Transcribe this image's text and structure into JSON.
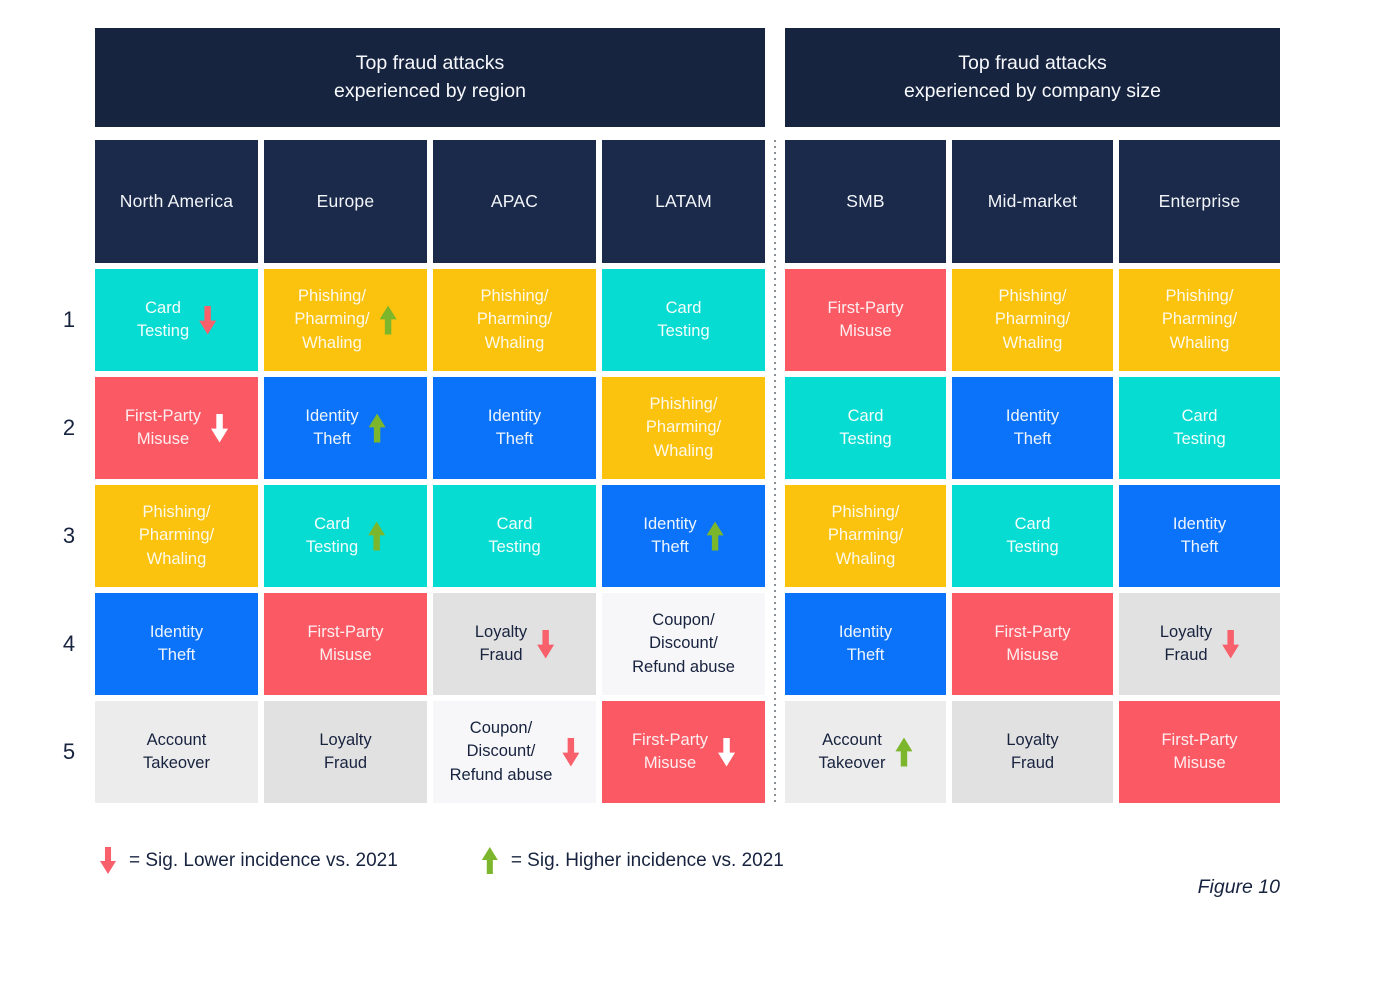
{
  "chart_data": {
    "type": "table",
    "ranks": [
      "1",
      "2",
      "3",
      "4",
      "5"
    ],
    "tables": [
      {
        "title": "Top fraud attacks\nexperienced by region",
        "columns": [
          {
            "name": "North America",
            "cells": [
              {
                "label": "Card\nTesting",
                "color": "teal",
                "arrow": "down-red",
                "trend": "sig. lower vs. 2021"
              },
              {
                "label": "First-Party\nMisuse",
                "color": "red",
                "arrow": "down-white",
                "trend": "sig. lower vs. 2021"
              },
              {
                "label": "Phishing/\nPharming/\nWhaling",
                "color": "yellow"
              },
              {
                "label": "Identity\nTheft",
                "color": "blue"
              },
              {
                "label": "Account\nTakeover",
                "color": "palegray"
              }
            ]
          },
          {
            "name": "Europe",
            "cells": [
              {
                "label": "Phishing/\nPharming/\nWhaling",
                "color": "yellow",
                "arrow": "up-green",
                "trend": "sig. higher vs. 2021"
              },
              {
                "label": "Identity\nTheft",
                "color": "blue",
                "arrow": "up-green",
                "trend": "sig. higher vs. 2021"
              },
              {
                "label": "Card\nTesting",
                "color": "teal",
                "arrow": "up-green",
                "trend": "sig. higher vs. 2021"
              },
              {
                "label": "First-Party\nMisuse",
                "color": "red"
              },
              {
                "label": "Loyalty\nFraud",
                "color": "gray"
              }
            ]
          },
          {
            "name": "APAC",
            "cells": [
              {
                "label": "Phishing/\nPharming/\nWhaling",
                "color": "yellow"
              },
              {
                "label": "Identity\nTheft",
                "color": "blue"
              },
              {
                "label": "Card\nTesting",
                "color": "teal"
              },
              {
                "label": "Loyalty\nFraud",
                "color": "gray",
                "arrow": "down-red",
                "trend": "sig. lower vs. 2021"
              },
              {
                "label": "Coupon/\nDiscount/\nRefund abuse",
                "color": "lightgray",
                "arrow": "down-red",
                "trend": "sig. lower vs. 2021"
              }
            ]
          },
          {
            "name": "LATAM",
            "cells": [
              {
                "label": "Card\nTesting",
                "color": "teal"
              },
              {
                "label": "Phishing/\nPharming/\nWhaling",
                "color": "yellow"
              },
              {
                "label": "Identity\nTheft",
                "color": "blue",
                "arrow": "up-green",
                "trend": "sig. higher vs. 2021"
              },
              {
                "label": "Coupon/\nDiscount/\nRefund abuse",
                "color": "lightgray"
              },
              {
                "label": "First-Party\nMisuse",
                "color": "red",
                "arrow": "down-white",
                "trend": "sig. lower vs. 2021"
              }
            ]
          }
        ]
      },
      {
        "title": "Top fraud attacks\nexperienced by company size",
        "columns": [
          {
            "name": "SMB",
            "cells": [
              {
                "label": "First-Party\nMisuse",
                "color": "red"
              },
              {
                "label": "Card\nTesting",
                "color": "teal"
              },
              {
                "label": "Phishing/\nPharming/\nWhaling",
                "color": "yellow"
              },
              {
                "label": "Identity\nTheft",
                "color": "blue"
              },
              {
                "label": "Account\nTakeover",
                "color": "palegray",
                "arrow": "up-green",
                "trend": "sig. higher vs. 2021"
              }
            ]
          },
          {
            "name": "Mid-market",
            "cells": [
              {
                "label": "Phishing/\nPharming/\nWhaling",
                "color": "yellow"
              },
              {
                "label": "Identity\nTheft",
                "color": "blue"
              },
              {
                "label": "Card\nTesting",
                "color": "teal"
              },
              {
                "label": "First-Party\nMisuse",
                "color": "red"
              },
              {
                "label": "Loyalty\nFraud",
                "color": "gray"
              }
            ]
          },
          {
            "name": "Enterprise",
            "cells": [
              {
                "label": "Phishing/\nPharming/\nWhaling",
                "color": "yellow"
              },
              {
                "label": "Card\nTesting",
                "color": "teal"
              },
              {
                "label": "Identity\nTheft",
                "color": "blue"
              },
              {
                "label": "Loyalty\nFraud",
                "color": "gray",
                "arrow": "down-red",
                "trend": "sig. lower vs. 2021"
              },
              {
                "label": "First-Party\nMisuse",
                "color": "red"
              }
            ]
          }
        ]
      }
    ],
    "legend": [
      {
        "icon": "down-arrow",
        "color": "#F8606C",
        "label": "= Sig. Lower incidence vs. 2021"
      },
      {
        "icon": "up-arrow",
        "color": "#7CB62C",
        "label": "= Sig. Higher incidence vs. 2021"
      }
    ],
    "figure_label": "Figure 10",
    "palette": {
      "header_navy": "#172440",
      "card_testing_teal": "#06DCD2",
      "phishing_yellow": "#FBC30E",
      "first_party_misuse_red": "#FB5A64",
      "identity_theft_blue": "#0B73F9",
      "loyalty_fraud_gray": "#E2E1E1",
      "account_takeover_gray": "#EDECEC",
      "coupon_abuse_gray": "#F7F6F8",
      "arrow_red": "#F8606C",
      "arrow_green": "#7CB62C",
      "text_navy": "#17233F"
    }
  }
}
